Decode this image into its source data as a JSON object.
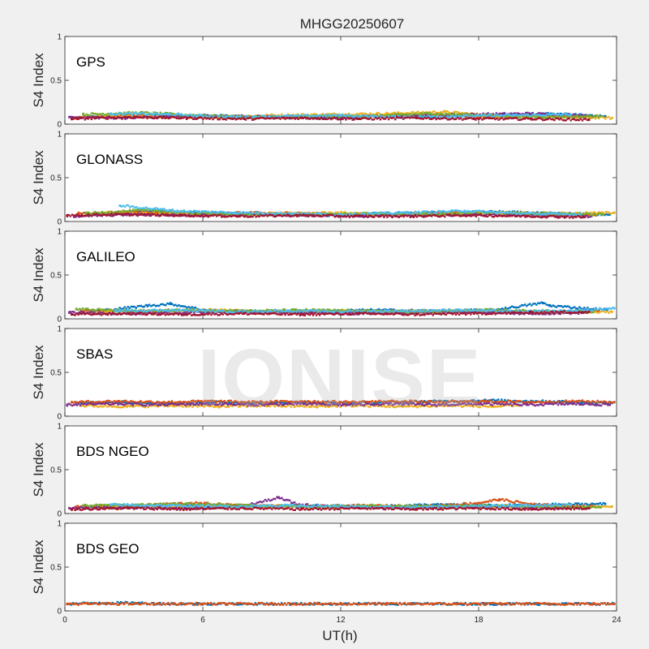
{
  "figure": {
    "title": "MHGG20250607",
    "watermark": "IONISE",
    "background": "#f0f0f0",
    "axes_background": "#ffffff"
  },
  "chart_data": {
    "type": "scatter",
    "title": "MHGG20250607",
    "xlabel": "UT(h)",
    "ylabel": "S4 Index",
    "xlim": [
      0,
      24
    ],
    "ylim": [
      0,
      1
    ],
    "xticks": [
      0,
      6,
      12,
      18,
      24
    ],
    "yticks": [
      0,
      0.5,
      1
    ],
    "yticklabels": [
      "0",
      "0.5",
      "1"
    ],
    "colors": [
      "#0072bd",
      "#d95319",
      "#edb120",
      "#7e2f8e",
      "#77ac30",
      "#4dbeee",
      "#a2142f"
    ],
    "panels": [
      {
        "label": "GPS",
        "series": [
          {
            "color": "#0072bd",
            "x": [
              1.0,
              3.5,
              6.0,
              8.5,
              11.0,
              13.5,
              16.0,
              18.5,
              21.0,
              23.5
            ],
            "y": [
              0.08,
              0.09,
              0.1,
              0.08,
              0.07,
              0.09,
              0.08,
              0.1,
              0.12,
              0.09
            ]
          },
          {
            "color": "#d95319",
            "x": [
              0.5,
              3.0,
              5.5,
              8.0,
              10.5,
              13.0,
              15.5,
              18.0,
              20.5,
              23.0
            ],
            "y": [
              0.07,
              0.1,
              0.09,
              0.07,
              0.08,
              0.1,
              0.11,
              0.08,
              0.09,
              0.08
            ]
          },
          {
            "color": "#edb120",
            "x": [
              1.5,
              4.0,
              6.5,
              9.0,
              11.5,
              14.0,
              16.5,
              19.0,
              21.5,
              23.8
            ],
            "y": [
              0.09,
              0.08,
              0.08,
              0.1,
              0.11,
              0.12,
              0.14,
              0.09,
              0.08,
              0.07
            ]
          },
          {
            "color": "#7e2f8e",
            "x": [
              0.2,
              2.7,
              5.2,
              7.7,
              10.2,
              12.7,
              15.2,
              17.7,
              20.2,
              22.7
            ],
            "y": [
              0.08,
              0.07,
              0.09,
              0.09,
              0.08,
              0.08,
              0.1,
              0.11,
              0.12,
              0.1
            ]
          },
          {
            "color": "#77ac30",
            "x": [
              0.8,
              3.3,
              5.8,
              8.3,
              10.8,
              13.3,
              15.8,
              18.3,
              20.8,
              23.3
            ],
            "y": [
              0.11,
              0.13,
              0.1,
              0.08,
              0.09,
              0.09,
              0.12,
              0.1,
              0.08,
              0.09
            ]
          },
          {
            "color": "#4dbeee",
            "x": [
              2.0,
              4.5,
              7.0,
              9.5,
              12.0,
              14.5,
              17.0,
              19.5,
              22.0
            ],
            "y": [
              0.12,
              0.11,
              0.08,
              0.09,
              0.1,
              0.08,
              0.09,
              0.1,
              0.11
            ]
          },
          {
            "color": "#a2142f",
            "x": [
              0.3,
              2.8,
              5.3,
              7.8,
              10.3,
              12.8,
              15.3,
              17.8,
              20.3,
              22.8
            ],
            "y": [
              0.06,
              0.08,
              0.07,
              0.06,
              0.07,
              0.06,
              0.07,
              0.06,
              0.06,
              0.05
            ]
          }
        ]
      },
      {
        "label": "GLONASS",
        "series": [
          {
            "color": "#0072bd",
            "x": [
              1.2,
              3.7,
              6.2,
              8.7,
              11.2,
              13.7,
              16.2,
              18.7,
              21.2,
              23.7
            ],
            "y": [
              0.08,
              0.12,
              0.1,
              0.08,
              0.07,
              0.09,
              0.1,
              0.11,
              0.09,
              0.08
            ]
          },
          {
            "color": "#d95319",
            "x": [
              0.6,
              3.1,
              5.6,
              8.1,
              10.6,
              13.1,
              15.6,
              18.1,
              20.6,
              23.1
            ],
            "y": [
              0.09,
              0.11,
              0.08,
              0.1,
              0.09,
              0.08,
              0.09,
              0.1,
              0.08,
              0.07
            ]
          },
          {
            "color": "#edb120",
            "x": [
              1.8,
              4.3,
              6.8,
              9.3,
              11.8,
              14.3,
              16.8,
              19.3,
              21.8,
              23.9
            ],
            "y": [
              0.1,
              0.09,
              0.08,
              0.09,
              0.1,
              0.08,
              0.09,
              0.1,
              0.09,
              0.1
            ]
          },
          {
            "color": "#7e2f8e",
            "x": [
              0.4,
              2.9,
              5.4,
              7.9,
              10.4,
              12.9,
              15.4,
              17.9,
              20.4,
              22.9
            ],
            "y": [
              0.06,
              0.08,
              0.07,
              0.08,
              0.07,
              0.06,
              0.07,
              0.08,
              0.07,
              0.06
            ]
          },
          {
            "color": "#77ac30",
            "x": [
              0.9,
              3.4,
              5.9,
              8.4,
              10.9,
              13.4,
              15.9,
              18.4,
              20.9,
              23.4
            ],
            "y": [
              0.09,
              0.13,
              0.09,
              0.08,
              0.08,
              0.09,
              0.08,
              0.1,
              0.09,
              0.08
            ]
          },
          {
            "color": "#4dbeee",
            "x": [
              2.4,
              4.9,
              7.4,
              9.9,
              12.4,
              14.9,
              17.4,
              19.9,
              22.4
            ],
            "y": [
              0.18,
              0.12,
              0.1,
              0.09,
              0.08,
              0.1,
              0.12,
              0.09,
              0.08
            ]
          },
          {
            "color": "#a2142f",
            "x": [
              0.1,
              2.6,
              5.1,
              7.6,
              10.1,
              12.6,
              15.1,
              17.6,
              20.1,
              22.6
            ],
            "y": [
              0.07,
              0.08,
              0.07,
              0.06,
              0.07,
              0.06,
              0.06,
              0.07,
              0.06,
              0.05
            ]
          }
        ]
      },
      {
        "label": "GALILEO",
        "series": [
          {
            "color": "#0072bd",
            "x": [
              1.1,
              3.6,
              4.6,
              6.1,
              8.6,
              11.1,
              13.6,
              16.1,
              18.6,
              20.8,
              21.1,
              23.6
            ],
            "y": [
              0.08,
              0.15,
              0.17,
              0.1,
              0.08,
              0.09,
              0.1,
              0.09,
              0.1,
              0.18,
              0.15,
              0.1
            ]
          },
          {
            "color": "#d95319",
            "x": [
              0.7,
              3.2,
              5.7,
              8.2,
              10.7,
              13.2,
              15.7,
              18.2,
              20.7,
              23.2
            ],
            "y": [
              0.09,
              0.08,
              0.09,
              0.08,
              0.07,
              0.08,
              0.09,
              0.08,
              0.07,
              0.09
            ]
          },
          {
            "color": "#edb120",
            "x": [
              1.6,
              4.1,
              6.6,
              9.1,
              11.6,
              14.1,
              16.6,
              19.1,
              21.6,
              23.8
            ],
            "y": [
              0.08,
              0.09,
              0.1,
              0.08,
              0.09,
              0.08,
              0.09,
              0.08,
              0.07,
              0.08
            ]
          },
          {
            "color": "#7e2f8e",
            "x": [
              0.2,
              2.7,
              5.2,
              7.7,
              10.2,
              12.7,
              15.2,
              17.7,
              20.2,
              22.7
            ],
            "y": [
              0.07,
              0.06,
              0.07,
              0.08,
              0.07,
              0.06,
              0.07,
              0.08,
              0.06,
              0.07
            ]
          },
          {
            "color": "#77ac30",
            "x": [
              0.5,
              3.0,
              5.5,
              8.0,
              10.5,
              13.0,
              15.5,
              18.0,
              20.5,
              23.0
            ],
            "y": [
              0.11,
              0.09,
              0.1,
              0.09,
              0.1,
              0.09,
              0.08,
              0.1,
              0.09,
              0.08
            ]
          },
          {
            "color": "#4dbeee",
            "x": [
              2.2,
              4.7,
              7.2,
              9.7,
              12.2,
              14.7,
              17.2,
              19.7,
              22.2,
              23.9
            ],
            "y": [
              0.09,
              0.1,
              0.08,
              0.09,
              0.08,
              0.09,
              0.1,
              0.08,
              0.09,
              0.12
            ]
          },
          {
            "color": "#a2142f",
            "x": [
              0.3,
              2.8,
              5.3,
              7.8,
              10.3,
              12.8,
              15.3,
              17.8,
              20.3,
              22.8
            ],
            "y": [
              0.05,
              0.06,
              0.05,
              0.06,
              0.05,
              0.06,
              0.05,
              0.06,
              0.07,
              0.08
            ]
          }
        ]
      },
      {
        "label": "SBAS",
        "series": [
          {
            "color": "#0072bd",
            "x": [
              0.5,
              2.5,
              4.5,
              6.5,
              8.5,
              10.5,
              12.5,
              14.5,
              16.5,
              18.5,
              20.5,
              22.5,
              23.8
            ],
            "y": [
              0.15,
              0.16,
              0.15,
              0.16,
              0.15,
              0.16,
              0.15,
              0.16,
              0.17,
              0.18,
              0.17,
              0.16,
              0.15
            ]
          },
          {
            "color": "#d95319",
            "x": [
              0.3,
              2.3,
              4.3,
              6.3,
              8.3,
              10.3,
              12.3,
              14.3,
              16.3,
              18.3,
              20.3,
              22.3,
              23.9
            ],
            "y": [
              0.16,
              0.17,
              0.16,
              0.17,
              0.16,
              0.17,
              0.16,
              0.17,
              0.16,
              0.17,
              0.16,
              0.17,
              0.16
            ]
          },
          {
            "color": "#edb120",
            "x": [
              0.7,
              2.7,
              4.7,
              6.7,
              8.7,
              10.7,
              12.7,
              14.7,
              16.7,
              18.7,
              19.8
            ],
            "y": [
              0.12,
              0.11,
              0.12,
              0.11,
              0.12,
              0.11,
              0.12,
              0.11,
              0.12,
              0.11,
              0.12
            ]
          },
          {
            "color": "#7e2f8e",
            "x": [
              0.1,
              2.1,
              4.1,
              6.1,
              8.1,
              10.1,
              12.1,
              14.1,
              16.1,
              18.1,
              20.1,
              22.1,
              23.7
            ],
            "y": [
              0.13,
              0.14,
              0.13,
              0.14,
              0.13,
              0.14,
              0.13,
              0.14,
              0.13,
              0.14,
              0.13,
              0.14,
              0.13
            ]
          }
        ]
      },
      {
        "label": "BDS NGEO",
        "series": [
          {
            "color": "#0072bd",
            "x": [
              1.0,
              3.5,
              6.0,
              8.5,
              11.0,
              13.5,
              16.0,
              18.5,
              21.0,
              23.5
            ],
            "y": [
              0.08,
              0.09,
              0.1,
              0.08,
              0.09,
              0.08,
              0.1,
              0.09,
              0.1,
              0.11
            ]
          },
          {
            "color": "#d95319",
            "x": [
              0.5,
              3.0,
              5.5,
              8.0,
              10.5,
              13.0,
              15.5,
              18.0,
              18.9,
              20.5,
              23.0
            ],
            "y": [
              0.08,
              0.09,
              0.12,
              0.09,
              0.08,
              0.09,
              0.08,
              0.12,
              0.16,
              0.1,
              0.08
            ]
          },
          {
            "color": "#edb120",
            "x": [
              1.5,
              4.0,
              6.5,
              9.0,
              11.5,
              14.0,
              16.5,
              19.0,
              21.5,
              23.8
            ],
            "y": [
              0.07,
              0.08,
              0.07,
              0.08,
              0.07,
              0.08,
              0.07,
              0.08,
              0.07,
              0.08
            ]
          },
          {
            "color": "#7e2f8e",
            "x": [
              0.2,
              2.7,
              5.2,
              7.7,
              9.3,
              10.2,
              12.7,
              15.2,
              17.7,
              20.2,
              22.7
            ],
            "y": [
              0.06,
              0.07,
              0.06,
              0.08,
              0.18,
              0.1,
              0.07,
              0.06,
              0.08,
              0.07,
              0.06
            ]
          },
          {
            "color": "#77ac30",
            "x": [
              0.8,
              3.3,
              5.8,
              8.3,
              10.8,
              13.3,
              15.8,
              18.3,
              20.8,
              23.3
            ],
            "y": [
              0.09,
              0.1,
              0.11,
              0.09,
              0.08,
              0.09,
              0.08,
              0.09,
              0.08,
              0.07
            ]
          },
          {
            "color": "#4dbeee",
            "x": [
              2.0,
              4.5,
              7.0,
              9.5,
              12.0,
              14.5,
              17.0,
              19.5,
              22.0
            ],
            "y": [
              0.1,
              0.09,
              0.08,
              0.09,
              0.08,
              0.07,
              0.08,
              0.09,
              0.1
            ]
          },
          {
            "color": "#a2142f",
            "x": [
              0.3,
              2.8,
              5.3,
              7.8,
              10.3,
              12.8,
              15.3,
              17.8,
              20.3,
              22.8
            ],
            "y": [
              0.05,
              0.06,
              0.05,
              0.06,
              0.05,
              0.06,
              0.05,
              0.06,
              0.05,
              0.06
            ]
          }
        ]
      },
      {
        "label": "BDS GEO",
        "series": [
          {
            "color": "#0072bd",
            "x": [
              0.2,
              1.5,
              3.0,
              4.5,
              6.0,
              9.0,
              12.0,
              15.0,
              18.0,
              21.0,
              23.9
            ],
            "y": [
              0.08,
              0.09,
              0.09,
              0.08,
              0.08,
              0.08,
              0.08,
              0.08,
              0.08,
              0.08,
              0.08
            ]
          },
          {
            "color": "#d95319",
            "x": [
              0.1,
              1.0,
              2.0,
              3.0,
              4.0,
              5.0,
              6.0,
              7.0,
              8.0,
              9.0,
              10.0,
              11.0,
              12.0,
              13.0,
              14.0,
              15.0,
              16.0,
              17.0,
              18.0,
              19.0,
              20.0,
              21.0,
              22.0,
              23.0,
              23.9
            ],
            "y": [
              0.08,
              0.08,
              0.08,
              0.08,
              0.08,
              0.08,
              0.08,
              0.08,
              0.08,
              0.08,
              0.08,
              0.08,
              0.08,
              0.08,
              0.08,
              0.08,
              0.08,
              0.08,
              0.08,
              0.08,
              0.08,
              0.08,
              0.08,
              0.08,
              0.08
            ]
          }
        ]
      }
    ]
  }
}
